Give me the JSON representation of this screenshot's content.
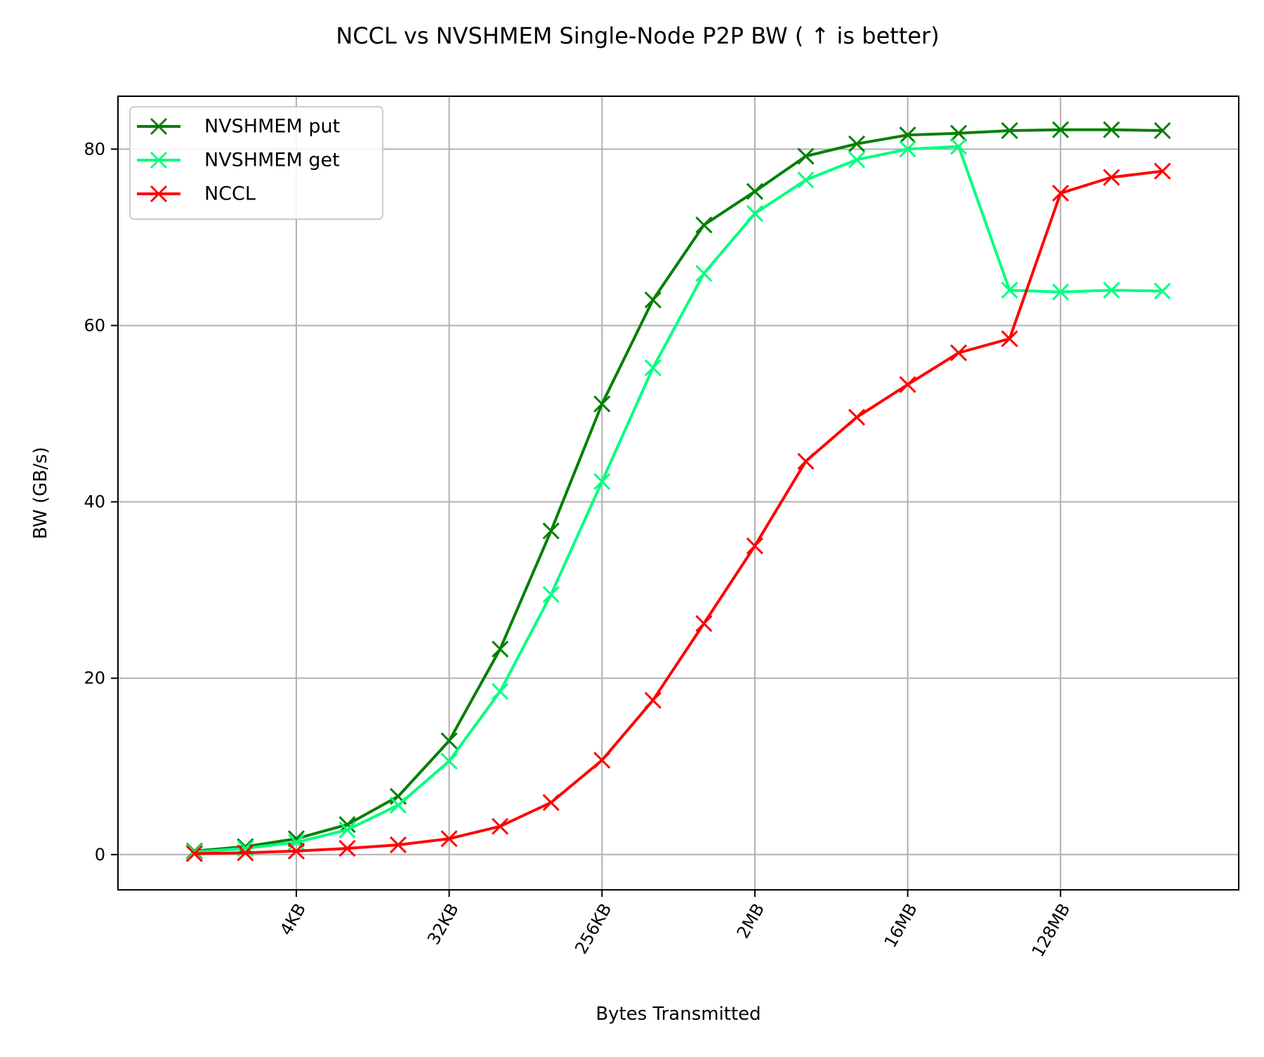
{
  "chart_data": {
    "type": "line",
    "title": "NCCL vs NVSHMEM Single-Node P2P BW ( ↑  is better)",
    "xlabel": "Bytes Transmitted",
    "ylabel": "BW (GB/s)",
    "x_scale": "log2",
    "x_unit": "bytes",
    "x_ticks": [
      {
        "value": 4096,
        "label": "4KB"
      },
      {
        "value": 32768,
        "label": "32KB"
      },
      {
        "value": 262144,
        "label": "256KB"
      },
      {
        "value": 2097152,
        "label": "2MB"
      },
      {
        "value": 16777216,
        "label": "16MB"
      },
      {
        "value": 134217728,
        "label": "128MB"
      }
    ],
    "y_ticks": [
      0,
      20,
      40,
      60,
      80
    ],
    "xlim": [
      362,
      1515716325
    ],
    "ylim": [
      -4,
      86
    ],
    "grid": true,
    "legend_position": "upper left",
    "x": [
      1024,
      2048,
      4096,
      8192,
      16384,
      32768,
      65536,
      131072,
      262144,
      524288,
      1048576,
      2097152,
      4194304,
      8388608,
      16777216,
      33554432,
      67108864,
      134217728,
      268435456,
      536870912
    ],
    "series": [
      {
        "name": "NVSHMEM put",
        "color": "#008000",
        "marker": "x",
        "values": [
          0.4,
          0.9,
          1.8,
          3.4,
          6.6,
          12.9,
          23.3,
          36.7,
          51.1,
          62.9,
          71.4,
          75.2,
          79.2,
          80.6,
          81.6,
          81.8,
          82.1,
          82.2,
          82.2,
          82.1
        ]
      },
      {
        "name": "NVSHMEM get",
        "color": "#00ff7f",
        "marker": "x",
        "values": [
          0.3,
          0.7,
          1.4,
          2.8,
          5.6,
          10.6,
          18.5,
          29.5,
          42.3,
          55.2,
          65.9,
          72.7,
          76.5,
          78.8,
          80.0,
          80.3,
          64.0,
          63.8,
          64.0,
          63.9
        ]
      },
      {
        "name": "NCCL",
        "color": "#ff0000",
        "marker": "x",
        "values": [
          0.1,
          0.2,
          0.4,
          0.7,
          1.1,
          1.8,
          3.2,
          5.9,
          10.7,
          17.5,
          26.2,
          35.0,
          44.6,
          49.6,
          53.3,
          56.9,
          58.5,
          75.0,
          76.8,
          77.5
        ]
      }
    ]
  }
}
